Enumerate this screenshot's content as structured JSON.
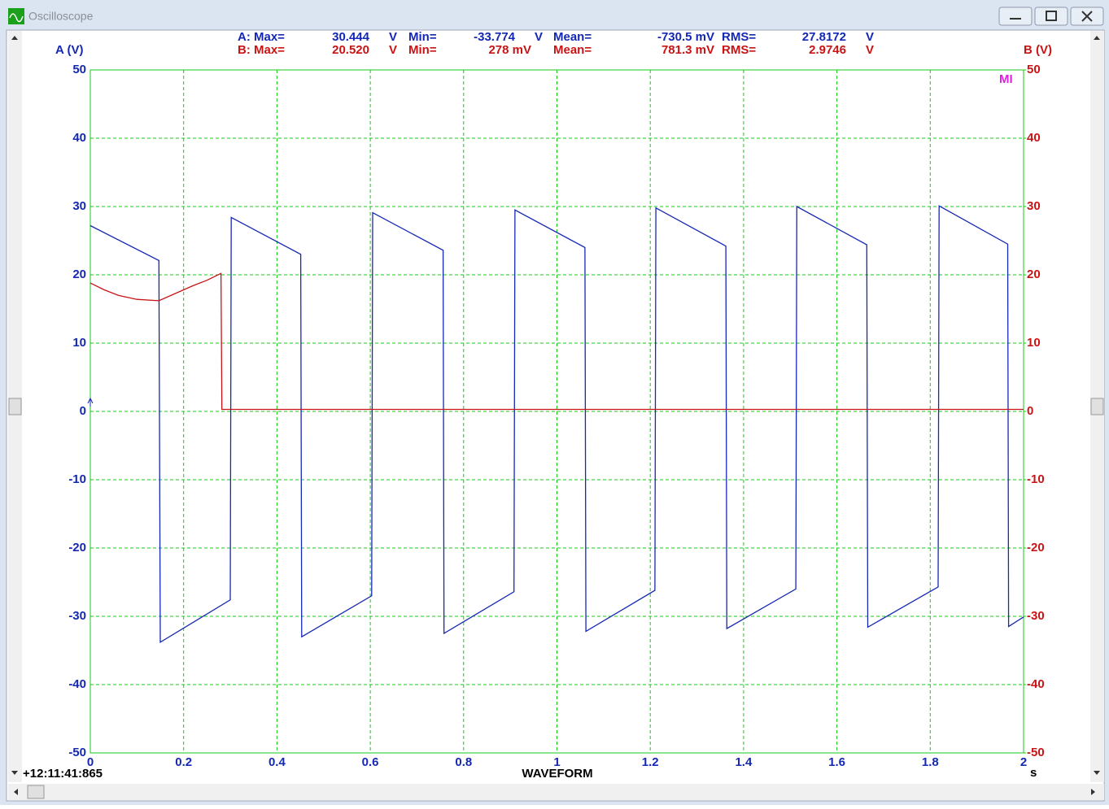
{
  "window": {
    "title": "Oscilloscope"
  },
  "chart_data": {
    "type": "line",
    "stats": [
      [
        "A: Max=",
        "30.444",
        "V",
        "Min=",
        "-33.774",
        "V",
        "Mean=",
        "-730.5 mV",
        "RMS=",
        "27.8172",
        "V"
      ],
      [
        "B: Max=",
        "20.520",
        "V",
        "Min=",
        "278 mV",
        "Mean=",
        "781.3 mV",
        "RMS=",
        "2.9746",
        "V"
      ]
    ],
    "marker": "MI",
    "timestamp": "+12:11:41:865",
    "x_label": "WAVEFORM",
    "x_unit": "s",
    "xlim": [
      0,
      2
    ],
    "xticks": [
      0,
      0.2,
      0.4,
      0.6,
      0.8,
      1,
      1.2,
      1.4,
      1.6,
      1.8,
      2
    ],
    "ylim": [
      -50,
      50
    ],
    "yticks": [
      -50,
      -40,
      -30,
      -20,
      -10,
      0,
      10,
      20,
      30,
      40,
      50
    ],
    "y2lim": [
      -50,
      50
    ],
    "y2ticks": [
      -50,
      -40,
      -30,
      -20,
      -10,
      0,
      10,
      20,
      30,
      40,
      50
    ],
    "grid": true,
    "series": [
      {
        "name": "A (V)",
        "color": "#1428b4",
        "x": [
          0,
          0.147,
          0.15,
          0.3,
          0.302,
          0.451,
          0.453,
          0.603,
          0.605,
          0.756,
          0.758,
          0.908,
          0.91,
          1.06,
          1.062,
          1.21,
          1.212,
          1.362,
          1.364,
          1.512,
          1.514,
          1.664,
          1.666,
          1.817,
          1.819,
          1.966,
          1.968,
          2
        ],
        "values": [
          27.2,
          22.1,
          -33.8,
          -27.6,
          28.4,
          23.0,
          -33.0,
          -27.0,
          29.1,
          23.6,
          -32.5,
          -26.4,
          29.5,
          24.0,
          -32.2,
          -26.2,
          29.8,
          24.2,
          -31.8,
          -26.0,
          30.0,
          24.4,
          -31.6,
          -25.7,
          30.1,
          24.5,
          -31.5,
          -30.1
        ]
      },
      {
        "name": "B (V)",
        "color": "#c81414",
        "axis": "y2",
        "x": [
          0,
          0.03,
          0.06,
          0.1,
          0.147,
          0.18,
          0.22,
          0.25,
          0.28,
          0.282,
          0.6,
          1.0,
          1.4,
          1.8,
          2
        ],
        "values": [
          18.8,
          17.8,
          17.0,
          16.4,
          16.2,
          17.2,
          18.4,
          19.2,
          20.2,
          0.3,
          0.3,
          0.3,
          0.3,
          0.3,
          0.3
        ]
      }
    ]
  }
}
